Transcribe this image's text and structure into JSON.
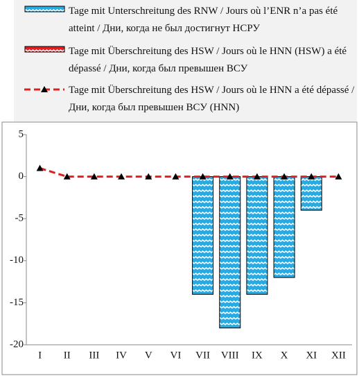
{
  "chart_data": {
    "type": "bar",
    "categories": [
      "I",
      "II",
      "III",
      "IV",
      "V",
      "VI",
      "VII",
      "VIII",
      "IX",
      "X",
      "XI",
      "XII"
    ],
    "series": [
      {
        "name": "Tage mit Unterschreitung des RNW / Jours où l’ENR n’a pas été atteint / Дни, когда не был достигнут НСРУ",
        "color": "#29abe2",
        "type": "bar",
        "values": [
          0,
          0,
          0,
          0,
          0,
          0,
          -14,
          -18,
          -14,
          -12,
          -4,
          0
        ]
      },
      {
        "name": "Tage mit Überschreitung des HSW / Jours où le HNN (HSW) a été dépassé / Дни, когда был превышен ВСУ",
        "color": "#e02020",
        "type": "bar",
        "values": [
          0,
          0,
          0,
          0,
          0,
          0,
          0,
          0,
          0,
          0,
          0,
          0
        ]
      },
      {
        "name": "Tage mit Überschreitung des HSW / Jours où le HNN a été dépassé / Дни, когда был превышен ВСУ (HNN)",
        "color": "#e02020",
        "type": "line",
        "values": [
          1,
          0,
          0,
          0,
          0,
          0,
          0,
          0,
          0,
          0,
          0,
          0
        ]
      }
    ],
    "ylim": [
      -20,
      5
    ],
    "yticks": [
      -20,
      -15,
      -10,
      -5,
      0,
      5
    ]
  }
}
